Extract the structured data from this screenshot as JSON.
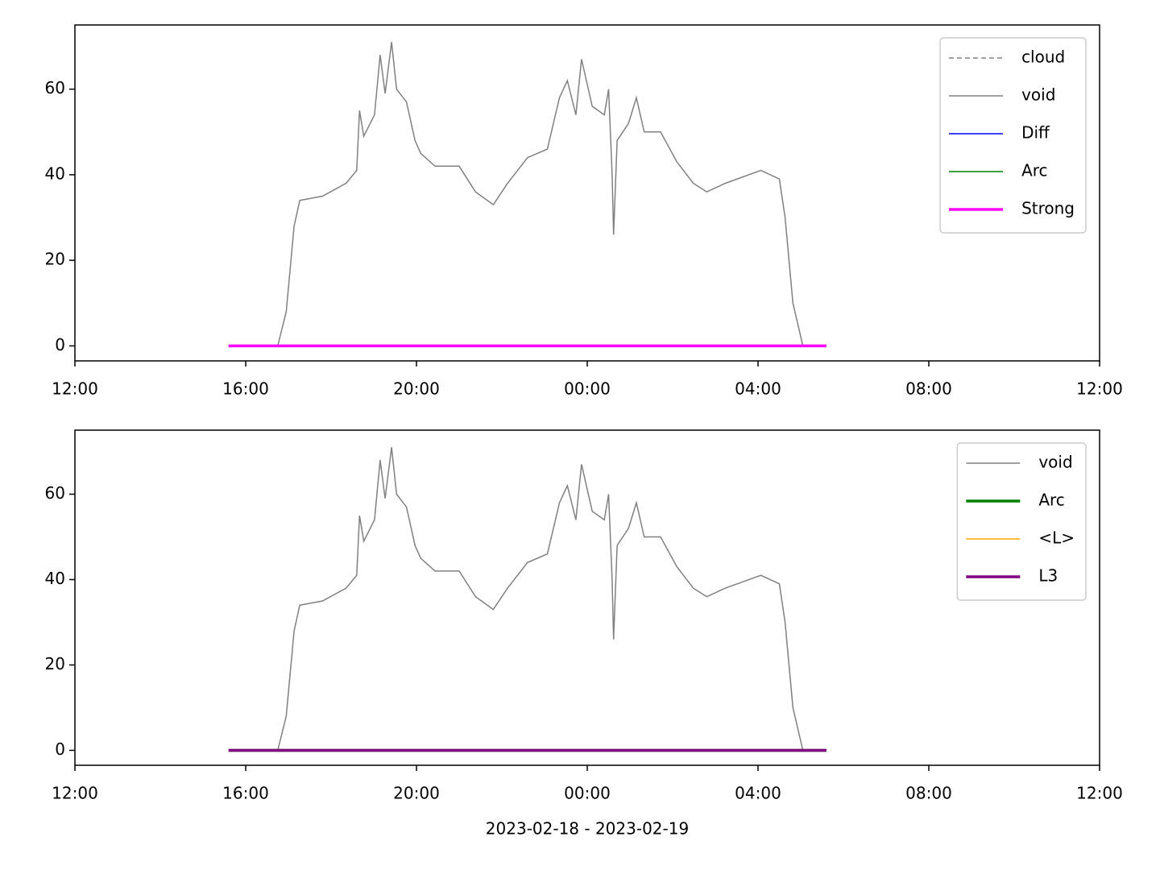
{
  "chart_data": [
    {
      "type": "line",
      "xlim": [
        "2023-02-18 12:00",
        "2023-02-19 12:00"
      ],
      "xticks": [
        {
          "value": "2023-02-18 12:00",
          "label": "12:00"
        },
        {
          "value": "2023-02-18 16:00",
          "label": "16:00"
        },
        {
          "value": "2023-02-18 20:00",
          "label": "20:00"
        },
        {
          "value": "2023-02-19 00:00",
          "label": "00:00"
        },
        {
          "value": "2023-02-19 04:00",
          "label": "04:00"
        },
        {
          "value": "2023-02-19 08:00",
          "label": "08:00"
        },
        {
          "value": "2023-02-19 12:00",
          "label": "12:00"
        }
      ],
      "ylim": [
        -3.5,
        75
      ],
      "yticks": [
        0,
        20,
        40,
        60
      ],
      "legend": "upper right",
      "series": [
        {
          "name": "cloud",
          "color": "#808080",
          "linestyle": "dashed",
          "linewidth": 1.5,
          "x": [
            "2023-02-18 15:36",
            "2023-02-19 05:36"
          ],
          "values": [
            0,
            0
          ]
        },
        {
          "name": "void",
          "color": "#808080",
          "linestyle": "solid",
          "linewidth": 1.5,
          "x": [
            "2023-02-18 16:45",
            "2023-02-18 16:57",
            "2023-02-18 17:08",
            "2023-02-18 17:16",
            "2023-02-18 17:48",
            "2023-02-18 18:21",
            "2023-02-18 18:36",
            "2023-02-18 18:40",
            "2023-02-18 18:46",
            "2023-02-18 19:01",
            "2023-02-18 19:09",
            "2023-02-18 19:16",
            "2023-02-18 19:25",
            "2023-02-18 19:32",
            "2023-02-18 19:46",
            "2023-02-18 19:58",
            "2023-02-18 20:06",
            "2023-02-18 20:26",
            "2023-02-18 21:00",
            "2023-02-18 21:23",
            "2023-02-18 21:48",
            "2023-02-18 22:08",
            "2023-02-18 22:36",
            "2023-02-18 23:04",
            "2023-02-18 23:21",
            "2023-02-18 23:32",
            "2023-02-18 23:44",
            "2023-02-18 23:52",
            "2023-02-19 00:07",
            "2023-02-19 00:24",
            "2023-02-19 00:30",
            "2023-02-19 00:35",
            "2023-02-19 00:37",
            "2023-02-19 00:42",
            "2023-02-19 00:58",
            "2023-02-19 01:09",
            "2023-02-19 01:20",
            "2023-02-19 01:43",
            "2023-02-19 02:06",
            "2023-02-19 02:29",
            "2023-02-19 02:48",
            "2023-02-19 03:14",
            "2023-02-19 04:04",
            "2023-02-19 04:30",
            "2023-02-19 04:38",
            "2023-02-19 04:49",
            "2023-02-19 05:03"
          ],
          "values": [
            0,
            8,
            28,
            34,
            35,
            38,
            41,
            55,
            49,
            54,
            68,
            59,
            71,
            60,
            57,
            48,
            45,
            42,
            42,
            36,
            33,
            38,
            44,
            46,
            58,
            62,
            54,
            67,
            56,
            54,
            60,
            40,
            26,
            48,
            52,
            58,
            50,
            50,
            43,
            38,
            36,
            38,
            41,
            39,
            30,
            10,
            0
          ]
        },
        {
          "name": "Diff",
          "color": "#0000ff",
          "linestyle": "solid",
          "linewidth": 1.5,
          "x": [
            "2023-02-18 15:36",
            "2023-02-19 05:36"
          ],
          "values": [
            0,
            0
          ]
        },
        {
          "name": "Arc",
          "color": "#008000",
          "linestyle": "solid",
          "linewidth": 1.5,
          "x": [
            "2023-02-18 15:36",
            "2023-02-19 05:36"
          ],
          "values": [
            0,
            0
          ]
        },
        {
          "name": "Strong",
          "color": "#ff00ff",
          "linestyle": "solid",
          "linewidth": 3.5,
          "x": [
            "2023-02-18 15:36",
            "2023-02-19 05:36"
          ],
          "values": [
            0,
            0
          ]
        }
      ]
    },
    {
      "type": "line",
      "xlabel": "2023-02-18 - 2023-02-19",
      "xlim": [
        "2023-02-18 12:00",
        "2023-02-19 12:00"
      ],
      "xticks": [
        {
          "value": "2023-02-18 12:00",
          "label": "12:00"
        },
        {
          "value": "2023-02-18 16:00",
          "label": "16:00"
        },
        {
          "value": "2023-02-18 20:00",
          "label": "20:00"
        },
        {
          "value": "2023-02-19 00:00",
          "label": "00:00"
        },
        {
          "value": "2023-02-19 04:00",
          "label": "04:00"
        },
        {
          "value": "2023-02-19 08:00",
          "label": "08:00"
        },
        {
          "value": "2023-02-19 12:00",
          "label": "12:00"
        }
      ],
      "ylim": [
        -3.5,
        75
      ],
      "yticks": [
        0,
        20,
        40,
        60
      ],
      "legend": "upper right",
      "series": [
        {
          "name": "void",
          "color": "#808080",
          "linestyle": "solid",
          "linewidth": 1.5,
          "x": [
            "2023-02-18 16:45",
            "2023-02-18 16:57",
            "2023-02-18 17:08",
            "2023-02-18 17:16",
            "2023-02-18 17:48",
            "2023-02-18 18:21",
            "2023-02-18 18:36",
            "2023-02-18 18:40",
            "2023-02-18 18:46",
            "2023-02-18 19:01",
            "2023-02-18 19:09",
            "2023-02-18 19:16",
            "2023-02-18 19:25",
            "2023-02-18 19:32",
            "2023-02-18 19:46",
            "2023-02-18 19:58",
            "2023-02-18 20:06",
            "2023-02-18 20:26",
            "2023-02-18 21:00",
            "2023-02-18 21:23",
            "2023-02-18 21:48",
            "2023-02-18 22:08",
            "2023-02-18 22:36",
            "2023-02-18 23:04",
            "2023-02-18 23:21",
            "2023-02-18 23:32",
            "2023-02-18 23:44",
            "2023-02-18 23:52",
            "2023-02-19 00:07",
            "2023-02-19 00:24",
            "2023-02-19 00:30",
            "2023-02-19 00:35",
            "2023-02-19 00:37",
            "2023-02-19 00:42",
            "2023-02-19 00:58",
            "2023-02-19 01:09",
            "2023-02-19 01:20",
            "2023-02-19 01:43",
            "2023-02-19 02:06",
            "2023-02-19 02:29",
            "2023-02-19 02:48",
            "2023-02-19 03:14",
            "2023-02-19 04:04",
            "2023-02-19 04:30",
            "2023-02-19 04:38",
            "2023-02-19 04:49",
            "2023-02-19 05:03"
          ],
          "values": [
            0,
            8,
            28,
            34,
            35,
            38,
            41,
            55,
            49,
            54,
            68,
            59,
            71,
            60,
            57,
            48,
            45,
            42,
            42,
            36,
            33,
            38,
            44,
            46,
            58,
            62,
            54,
            67,
            56,
            54,
            60,
            40,
            26,
            48,
            52,
            58,
            50,
            50,
            43,
            38,
            36,
            38,
            41,
            39,
            30,
            10,
            0
          ]
        },
        {
          "name": "Arc",
          "color": "#008000",
          "linestyle": "solid",
          "linewidth": 3.5,
          "x": [
            "2023-02-18 15:36",
            "2023-02-19 05:36"
          ],
          "values": [
            0,
            0
          ]
        },
        {
          "name": "<L>",
          "color": "#ffa500",
          "linestyle": "solid",
          "linewidth": 1.5,
          "x": [
            "2023-02-18 15:36",
            "2023-02-19 05:36"
          ],
          "values": [
            0,
            0
          ]
        },
        {
          "name": "L3",
          "color": "#800080",
          "linestyle": "solid",
          "linewidth": 3.5,
          "x": [
            "2023-02-18 15:36",
            "2023-02-19 05:36"
          ],
          "values": [
            0,
            0
          ]
        }
      ]
    }
  ]
}
